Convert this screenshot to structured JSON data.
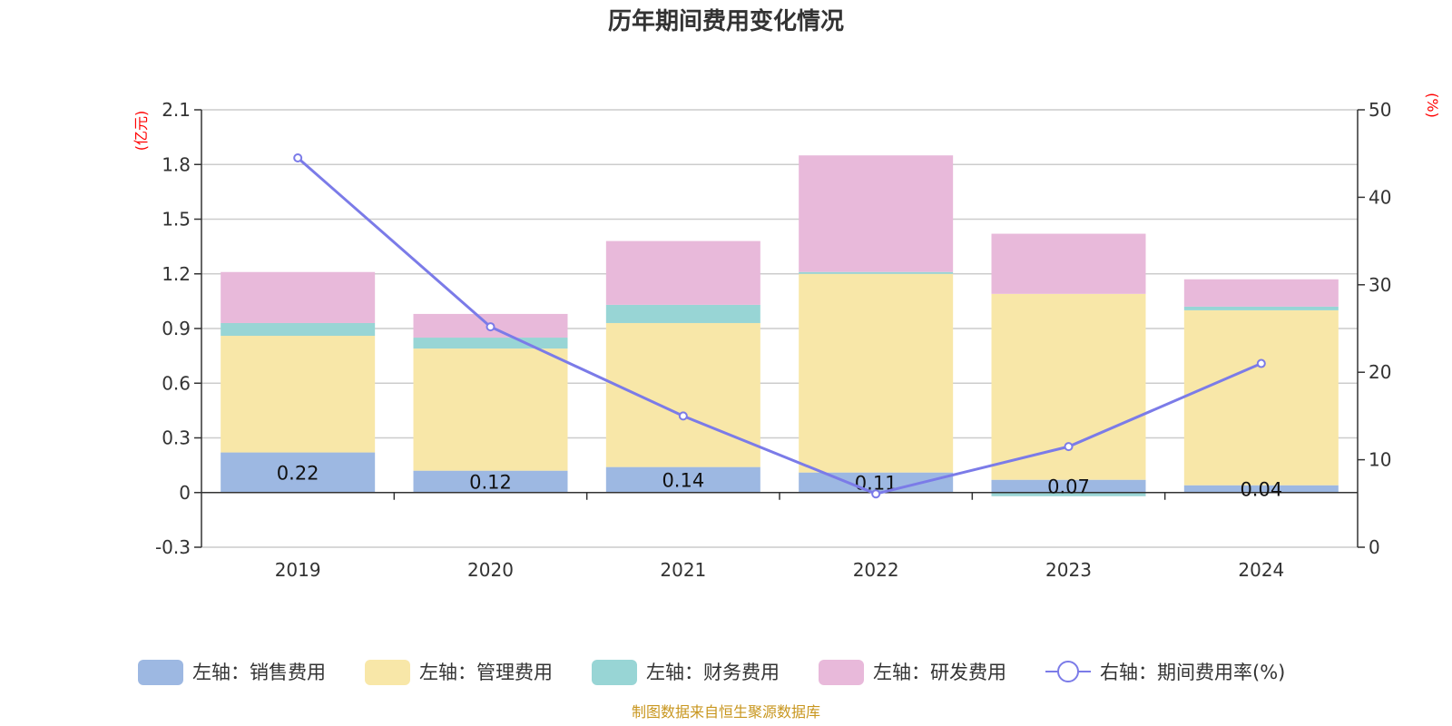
{
  "chart_data": {
    "type": "bar",
    "title": "历年期间费用变化情况",
    "categories": [
      "2019",
      "2020",
      "2021",
      "2022",
      "2023",
      "2024"
    ],
    "series": [
      {
        "name": "左轴：销售费用",
        "axis": "left",
        "kind": "bar",
        "color": "#9db8e2",
        "values": [
          0.22,
          0.12,
          0.14,
          0.11,
          0.07,
          0.04
        ],
        "labels": [
          "0.22",
          "0.12",
          "0.14",
          "0.11",
          "0.07",
          "0.04"
        ]
      },
      {
        "name": "左轴：管理费用",
        "axis": "left",
        "kind": "bar",
        "color": "#f8e7a8",
        "values": [
          0.64,
          0.67,
          0.79,
          1.09,
          1.02,
          0.96
        ]
      },
      {
        "name": "左轴：财务费用",
        "axis": "left",
        "kind": "bar",
        "color": "#98d5d5",
        "values": [
          0.07,
          0.06,
          0.1,
          0.01,
          -0.02,
          0.02
        ]
      },
      {
        "name": "左轴：研发费用",
        "axis": "left",
        "kind": "bar",
        "color": "#e8b9da",
        "values": [
          0.28,
          0.13,
          0.35,
          0.64,
          0.33,
          0.15
        ]
      },
      {
        "name": "右轴：期间费用率(%)",
        "axis": "right",
        "kind": "line",
        "color": "#7b7be8",
        "values": [
          44.5,
          25.2,
          15.0,
          6.1,
          11.5,
          21.0
        ]
      }
    ],
    "left_axis": {
      "unit": "(亿元)",
      "min": -0.3,
      "max": 2.1,
      "ticks": [
        -0.3,
        0,
        0.3,
        0.6,
        0.9,
        1.2,
        1.5,
        1.8,
        2.1
      ],
      "tick_labels": [
        "-0.3",
        "0",
        "0.3",
        "0.6",
        "0.9",
        "1.2",
        "1.5",
        "1.8",
        "2.1"
      ]
    },
    "right_axis": {
      "unit": "(%)",
      "min": 0,
      "max": 50,
      "ticks": [
        0,
        10,
        20,
        30,
        40,
        50
      ],
      "tick_labels": [
        "0",
        "10",
        "20",
        "30",
        "40",
        "50"
      ]
    },
    "legend_position": "bottom",
    "grid": true
  },
  "source_text": "制图数据来自恒生聚源数据库"
}
